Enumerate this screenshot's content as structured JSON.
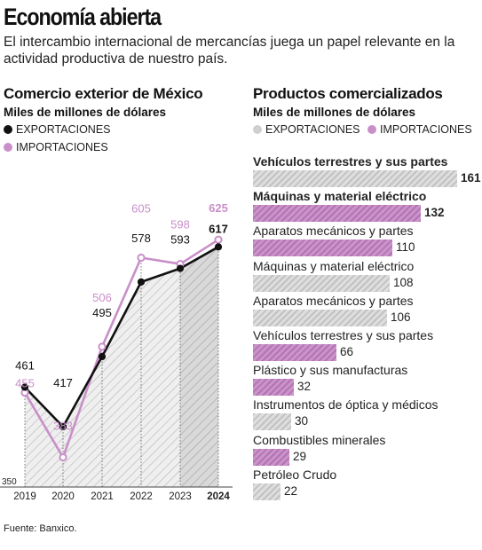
{
  "header": {
    "title": "Economía abierta",
    "subtitle": "El intercambio internacional de mercancías juega un papel relevante en la actividad  productiva de nuestro país."
  },
  "colors": {
    "exports": "#111111",
    "imports": "#c98fc9",
    "bar_exports": "#d4d4d4",
    "bar_imports": "#b572b5",
    "hatch": "#bdbdbd"
  },
  "source": "Fuente: Banxico.",
  "chart_data": [
    {
      "type": "line",
      "title": "Comercio exterior de México",
      "subtitle": "Miles de millones de dólares",
      "legend": [
        "EXPORTACIONES",
        "IMPORTACIONES"
      ],
      "x": [
        "2019",
        "2020",
        "2021",
        "2022",
        "2023",
        "2024"
      ],
      "series": [
        {
          "name": "EXPORTACIONES",
          "values": [
            461,
            417,
            495,
            578,
            593,
            617
          ]
        },
        {
          "name": "IMPORTACIONES",
          "values": [
            455,
            383,
            506,
            605,
            598,
            625
          ]
        }
      ],
      "ylim": [
        350,
        640
      ],
      "baseline_label": "350",
      "grid": false
    },
    {
      "type": "bar",
      "title": "Productos comercializados",
      "subtitle": "Miles de millones de dólares",
      "legend": [
        "EXPORTACIONES",
        "IMPORTACIONES"
      ],
      "orientation": "horizontal",
      "bars": [
        {
          "label": "Vehículos terrestres y sus partes",
          "value": 161,
          "series": "EXPORTACIONES"
        },
        {
          "label": "Máquinas y material eléctrico",
          "value": 132,
          "series": "IMPORTACIONES"
        },
        {
          "label": "Aparatos mecánicos y partes",
          "value": 110,
          "series": "IMPORTACIONES"
        },
        {
          "label": "Máquinas y material eléctrico",
          "value": 108,
          "series": "EXPORTACIONES"
        },
        {
          "label": "Aparatos mecánicos y partes",
          "value": 106,
          "series": "EXPORTACIONES"
        },
        {
          "label": "Vehículos terrestres y sus partes",
          "value": 66,
          "series": "IMPORTACIONES"
        },
        {
          "label": "Plástico y sus manufacturas",
          "value": 32,
          "series": "IMPORTACIONES"
        },
        {
          "label": "Instrumentos de óptica y médicos",
          "value": 30,
          "series": "EXPORTACIONES"
        },
        {
          "label": "Combustibles minerales",
          "value": 29,
          "series": "IMPORTACIONES"
        },
        {
          "label": "Petróleo Crudo",
          "value": 22,
          "series": "EXPORTACIONES"
        }
      ],
      "xlim": [
        0,
        161
      ]
    }
  ]
}
